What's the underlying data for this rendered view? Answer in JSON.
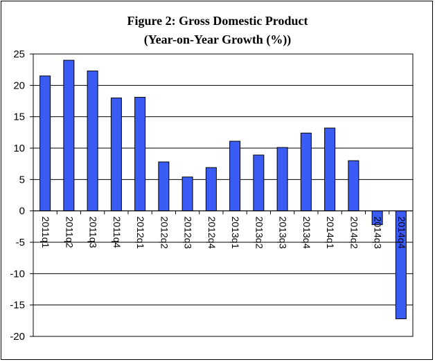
{
  "chart_data": {
    "type": "bar",
    "title": "Figure 2: Gross Domestic Product",
    "subtitle": "(Year-on-Year Growth (%))",
    "xlabel": "",
    "ylabel": "",
    "ylim": [
      -20,
      25
    ],
    "yticks": [
      "25",
      "20",
      "15",
      "10",
      "5",
      "0",
      "-5",
      "-10",
      "-15",
      "-20"
    ],
    "grid": true,
    "legend": "none",
    "bar_color": "#3b5bf5",
    "categories": [
      "2011q1",
      "2011q2",
      "2011q3",
      "2011q4",
      "2012q1",
      "2012q2",
      "2012q3",
      "2012q4",
      "2013q1",
      "2013q2",
      "2013q3",
      "2013q4",
      "2014q1",
      "2014q2",
      "2014q3",
      "2014q4"
    ],
    "values": [
      21.5,
      24.0,
      22.3,
      18.0,
      18.1,
      7.8,
      5.4,
      6.9,
      11.1,
      8.9,
      10.1,
      12.4,
      13.2,
      8.0,
      -2.2,
      -17.2
    ]
  }
}
